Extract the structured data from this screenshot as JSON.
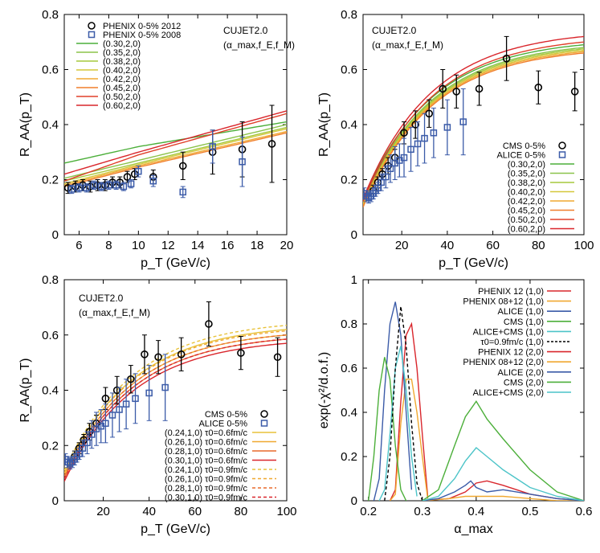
{
  "chart_data": [
    {
      "type": "scatter",
      "title": "",
      "annotation": "CUJET2.0",
      "annotation2": "(α_max,f_E,f_M)",
      "xlabel": "p_T (GeV/c)",
      "ylabel": "R_AA(p_T)",
      "xlim": [
        5,
        20
      ],
      "ylim": [
        0,
        0.8
      ],
      "xticks": [
        6,
        8,
        10,
        12,
        14,
        16,
        18,
        20
      ],
      "yticks": [
        0,
        0.2,
        0.4,
        0.6,
        0.8
      ],
      "legend_position": "top-left",
      "points": [
        {
          "name": "PHENIX 0-5% 2012",
          "marker": "circle",
          "color": "#000000",
          "x": [
            5.25,
            5.75,
            6.25,
            6.75,
            7.25,
            7.75,
            8.25,
            8.75,
            9.25,
            9.75,
            11,
            13,
            15,
            17,
            19
          ],
          "y": [
            0.17,
            0.175,
            0.18,
            0.175,
            0.18,
            0.18,
            0.19,
            0.19,
            0.21,
            0.22,
            0.21,
            0.25,
            0.3,
            0.31,
            0.33
          ],
          "err": [
            0.02,
            0.02,
            0.02,
            0.02,
            0.02,
            0.02,
            0.02,
            0.02,
            0.02,
            0.02,
            0.025,
            0.05,
            0.08,
            0.1,
            0.14
          ]
        },
        {
          "name": "PHENIX 0-5% 2008",
          "marker": "square",
          "color": "#3b5ba8",
          "x": [
            5.5,
            6.0,
            6.5,
            7.0,
            7.5,
            8.0,
            8.5,
            9.0,
            9.5,
            10.0,
            11,
            13,
            15,
            17
          ],
          "y": [
            0.165,
            0.17,
            0.17,
            0.18,
            0.175,
            0.18,
            0.18,
            0.175,
            0.185,
            0.23,
            0.195,
            0.155,
            0.32,
            0.265
          ],
          "err": [
            0.015,
            0.015,
            0.015,
            0.015,
            0.015,
            0.015,
            0.015,
            0.015,
            0.015,
            0.02,
            0.02,
            0.02,
            0.06,
            0.09
          ]
        }
      ],
      "series": [
        {
          "name": "(0.30,2,0)",
          "color": "#4caf3a",
          "y_at_x": [
            [
              5,
              0.26
            ],
            [
              10,
              0.32
            ],
            [
              20,
              0.41
            ]
          ]
        },
        {
          "name": "(0.35,2,0)",
          "color": "#8bc34a",
          "y_at_x": [
            [
              5,
              0.205
            ],
            [
              10,
              0.27
            ],
            [
              20,
              0.4
            ]
          ]
        },
        {
          "name": "(0.38,2,0)",
          "color": "#a5c83d",
          "y_at_x": [
            [
              5,
              0.195
            ],
            [
              10,
              0.26
            ],
            [
              20,
              0.39
            ]
          ]
        },
        {
          "name": "(0.40,2,0)",
          "color": "#d4c73a",
          "y_at_x": [
            [
              5,
              0.185
            ],
            [
              10,
              0.255
            ],
            [
              20,
              0.385
            ]
          ]
        },
        {
          "name": "(0.42,2,0)",
          "color": "#f0a830",
          "y_at_x": [
            [
              5,
              0.18
            ],
            [
              10,
              0.25
            ],
            [
              20,
              0.375
            ]
          ]
        },
        {
          "name": "(0.45,2,0)",
          "color": "#f07f2c",
          "y_at_x": [
            [
              5,
              0.175
            ],
            [
              10,
              0.245
            ],
            [
              20,
              0.37
            ]
          ]
        },
        {
          "name": "(0.50,2,0)",
          "color": "#e0402a",
          "y_at_x": [
            [
              5,
              0.195
            ],
            [
              10,
              0.29
            ],
            [
              20,
              0.44
            ]
          ]
        },
        {
          "name": "(0.60,2,0)",
          "color": "#d9262c",
          "y_at_x": [
            [
              5,
              0.22
            ],
            [
              10,
              0.3
            ],
            [
              20,
              0.45
            ]
          ]
        }
      ]
    },
    {
      "type": "scatter",
      "title": "",
      "annotation": "CUJET2.0",
      "annotation2": "(α_max,f_E,f_M)",
      "xlabel": "p_T (GeV/c)",
      "ylabel": "R_AA(p_T)",
      "xlim": [
        3,
        100
      ],
      "ylim": [
        0,
        0.8
      ],
      "xticks": [
        20,
        40,
        60,
        80,
        100
      ],
      "yticks": [
        0,
        0.2,
        0.4,
        0.6,
        0.8
      ],
      "legend_position": "right",
      "points": [
        {
          "name": "CMS 0-5%",
          "marker": "circle",
          "color": "#000000",
          "x": [
            7.5,
            9.5,
            11.5,
            14,
            17,
            21,
            26,
            32,
            38,
            44,
            54,
            66,
            80,
            96
          ],
          "y": [
            0.16,
            0.19,
            0.22,
            0.25,
            0.28,
            0.37,
            0.4,
            0.44,
            0.53,
            0.52,
            0.53,
            0.64,
            0.535,
            0.52
          ],
          "err": [
            0.02,
            0.02,
            0.02,
            0.03,
            0.03,
            0.04,
            0.05,
            0.05,
            0.07,
            0.06,
            0.06,
            0.08,
            0.06,
            0.07
          ]
        },
        {
          "name": "ALICE 0-5%",
          "marker": "square",
          "color": "#3b5ba8",
          "x": [
            3.5,
            4.5,
            5.5,
            6.5,
            7.5,
            8.5,
            9.5,
            11,
            13,
            15,
            17,
            19,
            21,
            24,
            27,
            30,
            34,
            40,
            47
          ],
          "y": [
            0.15,
            0.14,
            0.135,
            0.14,
            0.15,
            0.16,
            0.17,
            0.19,
            0.21,
            0.24,
            0.26,
            0.27,
            0.28,
            0.31,
            0.33,
            0.35,
            0.37,
            0.39,
            0.41
          ],
          "err": [
            0.02,
            0.02,
            0.02,
            0.02,
            0.02,
            0.02,
            0.02,
            0.03,
            0.04,
            0.05,
            0.06,
            0.06,
            0.07,
            0.08,
            0.08,
            0.09,
            0.09,
            0.1,
            0.12
          ]
        }
      ],
      "series": [
        {
          "name": "(0.30,2,0)",
          "color": "#4caf3a",
          "curve": [
            0.13,
            0.69
          ]
        },
        {
          "name": "(0.35,2,0)",
          "color": "#8bc34a",
          "curve": [
            0.12,
            0.68
          ]
        },
        {
          "name": "(0.38,2,0)",
          "color": "#a5c83d",
          "curve": [
            0.115,
            0.675
          ]
        },
        {
          "name": "(0.40,2,0)",
          "color": "#d4c73a",
          "curve": [
            0.11,
            0.67
          ]
        },
        {
          "name": "(0.42,2,0)",
          "color": "#f0a830",
          "curve": [
            0.105,
            0.665
          ]
        },
        {
          "name": "(0.45,2,0)",
          "color": "#f07f2c",
          "curve": [
            0.1,
            0.66
          ]
        },
        {
          "name": "(0.50,2,0)",
          "color": "#e0402a",
          "curve": [
            0.12,
            0.7
          ]
        },
        {
          "name": "(0.60,2,0)",
          "color": "#d9262c",
          "curve": [
            0.13,
            0.72
          ]
        }
      ]
    },
    {
      "type": "scatter",
      "title": "",
      "annotation": "CUJET2.0",
      "annotation2": "(α_max,f_E,f_M)",
      "xlabel": "p_T (GeV/c)",
      "ylabel": "R_AA(p_T)",
      "xlim": [
        3,
        100
      ],
      "ylim": [
        0,
        0.8
      ],
      "xticks": [
        20,
        40,
        60,
        80,
        100
      ],
      "yticks": [
        0,
        0.2,
        0.4,
        0.6,
        0.8
      ],
      "legend_position": "right",
      "points": [
        {
          "name": "CMS 0-5%",
          "marker": "circle",
          "color": "#000000",
          "x": [
            7.5,
            9.5,
            11.5,
            14,
            17,
            21,
            26,
            32,
            38,
            44,
            54,
            66,
            80,
            96
          ],
          "y": [
            0.16,
            0.19,
            0.22,
            0.25,
            0.28,
            0.37,
            0.4,
            0.44,
            0.53,
            0.52,
            0.53,
            0.64,
            0.535,
            0.52
          ],
          "err": [
            0.02,
            0.02,
            0.02,
            0.03,
            0.03,
            0.04,
            0.05,
            0.05,
            0.07,
            0.06,
            0.06,
            0.08,
            0.06,
            0.07
          ]
        },
        {
          "name": "ALICE 0-5%",
          "marker": "square",
          "color": "#3b5ba8",
          "x": [
            3.5,
            4.5,
            5.5,
            6.5,
            7.5,
            8.5,
            9.5,
            11,
            13,
            15,
            17,
            19,
            21,
            24,
            27,
            30,
            34,
            40,
            47
          ],
          "y": [
            0.15,
            0.14,
            0.135,
            0.14,
            0.15,
            0.16,
            0.17,
            0.19,
            0.21,
            0.24,
            0.26,
            0.27,
            0.28,
            0.31,
            0.33,
            0.35,
            0.37,
            0.39,
            0.41
          ],
          "err": [
            0.02,
            0.02,
            0.02,
            0.02,
            0.02,
            0.02,
            0.02,
            0.03,
            0.04,
            0.05,
            0.06,
            0.06,
            0.07,
            0.08,
            0.08,
            0.09,
            0.09,
            0.1,
            0.12
          ]
        }
      ],
      "series": [
        {
          "name": "(0.24,1,0) τ0=0.6fm/c",
          "color": "#e8c23a",
          "dash": false,
          "curve": [
            0.1,
            0.62
          ]
        },
        {
          "name": "(0.26,1,0) τ0=0.6fm/c",
          "color": "#f0a830",
          "dash": false,
          "curve": [
            0.09,
            0.6
          ]
        },
        {
          "name": "(0.28,1,0) τ0=0.6fm/c",
          "color": "#e86a2c",
          "dash": false,
          "curve": [
            0.08,
            0.585
          ]
        },
        {
          "name": "(0.30,1,0) τ0=0.6fm/c",
          "color": "#d9262c",
          "dash": false,
          "curve": [
            0.07,
            0.57
          ]
        },
        {
          "name": "(0.24,1,0) τ0=0.9fm/c",
          "color": "#e8c23a",
          "dash": true,
          "curve": [
            0.11,
            0.635
          ]
        },
        {
          "name": "(0.26,1,0) τ0=0.9fm/c",
          "color": "#f0a830",
          "dash": true,
          "curve": [
            0.1,
            0.615
          ]
        },
        {
          "name": "(0.28,1,0) τ0=0.9fm/c",
          "color": "#e86a2c",
          "dash": true,
          "curve": [
            0.09,
            0.6
          ]
        },
        {
          "name": "(0.30,1,0) τ0=0.9fm/c",
          "color": "#d9262c",
          "dash": true,
          "curve": [
            0.08,
            0.585
          ]
        }
      ]
    },
    {
      "type": "line",
      "title": "",
      "xlabel": "α_max",
      "ylabel": "exp(-χ²/d.o.f.)",
      "xlim": [
        0.19,
        0.6
      ],
      "ylim": [
        0,
        1
      ],
      "xticks": [
        0.2,
        0.3,
        0.4,
        0.5,
        0.6
      ],
      "yticks": [
        0,
        0.2,
        0.4,
        0.6,
        0.8,
        1
      ],
      "legend_position": "top-right",
      "series": [
        {
          "name": "PHENIX 12 (1,0)",
          "color": "#d9262c",
          "dash": false,
          "x": [
            0.24,
            0.25,
            0.26,
            0.27,
            0.28,
            0.29,
            0.3,
            0.31
          ],
          "y": [
            0.0,
            0.05,
            0.45,
            0.75,
            0.8,
            0.6,
            0.3,
            0.02
          ]
        },
        {
          "name": "PHENIX 08+12 (1,0)",
          "color": "#f0a830",
          "dash": false,
          "x": [
            0.24,
            0.25,
            0.26,
            0.27,
            0.28,
            0.29,
            0.3,
            0.31
          ],
          "y": [
            0.0,
            0.03,
            0.35,
            0.55,
            0.55,
            0.4,
            0.2,
            0.01
          ]
        },
        {
          "name": "ALICE (1,0)",
          "color": "#3b5ba8",
          "dash": false,
          "x": [
            0.21,
            0.22,
            0.23,
            0.24,
            0.25,
            0.26,
            0.27,
            0.28
          ],
          "y": [
            0.0,
            0.1,
            0.5,
            0.8,
            0.9,
            0.75,
            0.4,
            0.05
          ]
        },
        {
          "name": "CMS (1,0)",
          "color": "#4caf3a",
          "dash": false,
          "x": [
            0.2,
            0.21,
            0.22,
            0.23,
            0.24,
            0.25,
            0.26,
            0.27
          ],
          "y": [
            0.0,
            0.2,
            0.5,
            0.65,
            0.55,
            0.25,
            0.05,
            0.0
          ]
        },
        {
          "name": "ALICE+CMS (1,0)",
          "color": "#4cc4c8",
          "dash": false,
          "x": [
            0.22,
            0.23,
            0.24,
            0.25,
            0.26,
            0.27,
            0.28,
            0.29
          ],
          "y": [
            0.0,
            0.05,
            0.3,
            0.6,
            0.7,
            0.5,
            0.2,
            0.02
          ]
        },
        {
          "name": "τ0=0.9fm/c (1,0)",
          "color": "#000000",
          "dash": true,
          "x": [
            0.23,
            0.24,
            0.25,
            0.26,
            0.27,
            0.28,
            0.29,
            0.3
          ],
          "y": [
            0.0,
            0.2,
            0.6,
            0.88,
            0.7,
            0.35,
            0.08,
            0.0
          ]
        },
        {
          "name": "PHENIX 12 (2,0)",
          "color": "#d9262c",
          "dash": false,
          "x": [
            0.3,
            0.35,
            0.38,
            0.4,
            0.42,
            0.45,
            0.5,
            0.55,
            0.6
          ],
          "y": [
            0.0,
            0.01,
            0.04,
            0.08,
            0.09,
            0.07,
            0.03,
            0.01,
            0.0
          ]
        },
        {
          "name": "PHENIX 08+12 (2,0)",
          "color": "#f0a830",
          "dash": false,
          "x": [
            0.3,
            0.35,
            0.38,
            0.4,
            0.42,
            0.45,
            0.5,
            0.55,
            0.6
          ],
          "y": [
            0.0,
            0.01,
            0.02,
            0.02,
            0.02,
            0.02,
            0.01,
            0.0,
            0.0
          ]
        },
        {
          "name": "ALICE (2,0)",
          "color": "#3b5ba8",
          "dash": false,
          "x": [
            0.3,
            0.33,
            0.36,
            0.38,
            0.39,
            0.4,
            0.42,
            0.45,
            0.5,
            0.55,
            0.6
          ],
          "y": [
            0.0,
            0.01,
            0.04,
            0.07,
            0.09,
            0.06,
            0.04,
            0.05,
            0.03,
            0.01,
            0.0
          ]
        },
        {
          "name": "CMS (2,0)",
          "color": "#4caf3a",
          "dash": false,
          "x": [
            0.3,
            0.33,
            0.36,
            0.38,
            0.4,
            0.42,
            0.45,
            0.5,
            0.55,
            0.6
          ],
          "y": [
            0.0,
            0.05,
            0.25,
            0.38,
            0.45,
            0.37,
            0.28,
            0.14,
            0.04,
            0.0
          ]
        },
        {
          "name": "ALICE+CMS (2,0)",
          "color": "#4cc4c8",
          "dash": false,
          "x": [
            0.3,
            0.33,
            0.36,
            0.38,
            0.4,
            0.42,
            0.45,
            0.5,
            0.55,
            0.6
          ],
          "y": [
            0.0,
            0.02,
            0.1,
            0.18,
            0.24,
            0.2,
            0.14,
            0.06,
            0.02,
            0.0
          ]
        }
      ]
    }
  ]
}
